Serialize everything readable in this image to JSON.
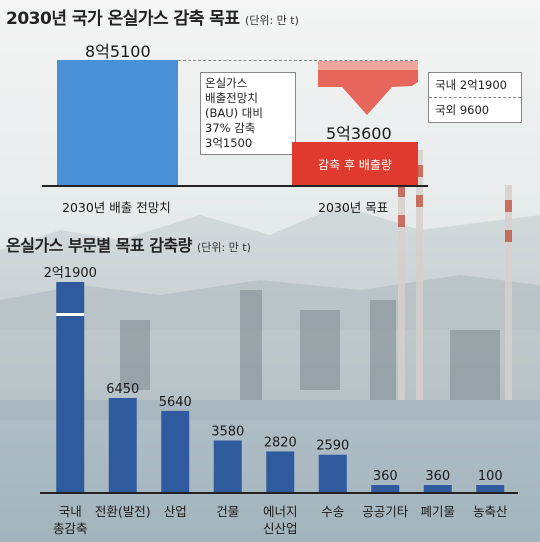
{
  "top": {
    "title": "2030년 국가 온실가스 감축 목표",
    "unit": "(단위: 만 t)",
    "bau_value": "8억5100",
    "bau_label": "2030년 배출 전망치",
    "target_value": "5억3600",
    "target_label": "2030년 목표",
    "target_bar_label": "감축 후 배출량",
    "note_lines": [
      "온실가스",
      "배출전망치",
      "(BAU) 대비",
      "37% 감축",
      "3억1500"
    ],
    "domestic": "국내   2억1900",
    "overseas": "국외   9600"
  },
  "bottom": {
    "title": "온실가스 부문별 목표 감축량",
    "unit": "(단위: 만 t)"
  },
  "chart_data": [
    {
      "type": "bar",
      "title": "2030년 국가 온실가스 감축 목표",
      "categories": [
        "2030년 배출 전망치",
        "2030년 목표"
      ],
      "values": [
        85100,
        53600
      ],
      "value_labels": [
        "8억5100",
        "5억3600"
      ],
      "reduction": 31500,
      "reduction_breakdown": {
        "국내": 21900,
        "국외": 9600
      },
      "colors": [
        "#4a90d6",
        "#e03a2e"
      ]
    },
    {
      "type": "bar",
      "title": "온실가스 부문별 목표 감축량",
      "categories": [
        "국내 총감축",
        "전환(발전)",
        "산업",
        "건물",
        "에너지 신산업",
        "수송",
        "공공기타",
        "폐기물",
        "농축산"
      ],
      "tick_lines": [
        [
          "국내",
          "총감축"
        ],
        [
          "전환(발전)"
        ],
        [
          "산업"
        ],
        [
          "건물"
        ],
        [
          "에너지",
          "신산업"
        ],
        [
          "수송"
        ],
        [
          "공공기타"
        ],
        [
          "폐기물"
        ],
        [
          "농축산"
        ]
      ],
      "values": [
        21900,
        6450,
        5640,
        3580,
        2820,
        2590,
        360,
        360,
        100
      ],
      "value_labels": [
        "2억1900",
        "6450",
        "5640",
        "3580",
        "2820",
        "2590",
        "360",
        "360",
        "100"
      ],
      "color": "#2f5a9e"
    }
  ]
}
